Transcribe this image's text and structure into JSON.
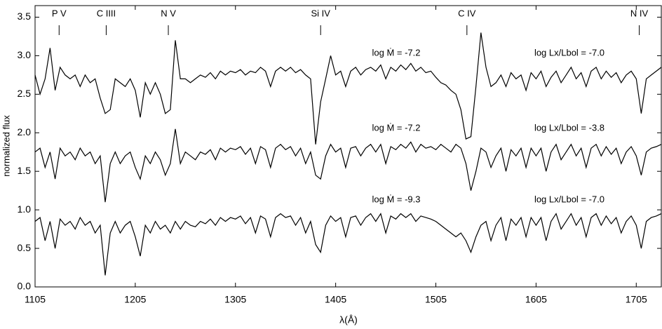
{
  "chart_data": {
    "type": "line",
    "xlabel": "λ(Å)",
    "ylabel": "normalized flux",
    "xlim": [
      1105,
      1730
    ],
    "ylim": [
      0,
      3.65
    ],
    "xticks": [
      1105,
      1205,
      1305,
      1405,
      1505,
      1605,
      1705
    ],
    "yticks": [
      {
        "value": 0,
        "label": "0.0"
      },
      0.5,
      {
        "value": 1,
        "label": "1.0"
      },
      1.5,
      {
        "value": 2,
        "label": "2.0"
      },
      2.5,
      {
        "value": 3,
        "label": "3.0"
      },
      3.5
    ],
    "color": "#000000",
    "line_ids": [
      {
        "label": "P V",
        "x": 1129
      },
      {
        "label": "C IIII",
        "x": 1176
      },
      {
        "label": "N V",
        "x": 1238
      },
      {
        "label": "Si IV",
        "x": 1390
      },
      {
        "label": "C IV",
        "x": 1536
      },
      {
        "label": "N IV",
        "x": 1708
      }
    ],
    "x": [
      1105,
      1110,
      1115,
      1120,
      1125,
      1130,
      1135,
      1140,
      1145,
      1150,
      1155,
      1160,
      1165,
      1170,
      1175,
      1180,
      1185,
      1190,
      1195,
      1200,
      1205,
      1210,
      1215,
      1220,
      1225,
      1230,
      1235,
      1240,
      1245,
      1250,
      1255,
      1260,
      1265,
      1270,
      1275,
      1280,
      1285,
      1290,
      1295,
      1300,
      1305,
      1310,
      1315,
      1320,
      1325,
      1330,
      1335,
      1340,
      1345,
      1350,
      1355,
      1360,
      1365,
      1370,
      1375,
      1380,
      1385,
      1390,
      1395,
      1400,
      1405,
      1410,
      1415,
      1420,
      1425,
      1430,
      1435,
      1440,
      1445,
      1450,
      1455,
      1460,
      1465,
      1470,
      1475,
      1480,
      1485,
      1490,
      1495,
      1500,
      1505,
      1510,
      1515,
      1520,
      1525,
      1530,
      1535,
      1540,
      1545,
      1550,
      1555,
      1560,
      1565,
      1570,
      1575,
      1580,
      1585,
      1590,
      1595,
      1600,
      1605,
      1610,
      1615,
      1620,
      1625,
      1630,
      1635,
      1640,
      1645,
      1650,
      1655,
      1660,
      1665,
      1670,
      1675,
      1680,
      1685,
      1690,
      1695,
      1700,
      1705,
      1710,
      1715,
      1720,
      1725,
      1730
    ],
    "series": [
      {
        "name": "log Ṁ = -7.2",
        "note": "log Lx/Lbol = -7.0",
        "values": [
          2.75,
          2.5,
          2.7,
          3.1,
          2.55,
          2.85,
          2.75,
          2.7,
          2.75,
          2.6,
          2.75,
          2.65,
          2.7,
          2.45,
          2.25,
          2.3,
          2.7,
          2.65,
          2.6,
          2.7,
          2.55,
          2.2,
          2.65,
          2.5,
          2.65,
          2.5,
          2.25,
          2.3,
          3.2,
          2.7,
          2.7,
          2.65,
          2.7,
          2.75,
          2.72,
          2.78,
          2.7,
          2.8,
          2.75,
          2.8,
          2.78,
          2.82,
          2.75,
          2.8,
          2.78,
          2.85,
          2.8,
          2.6,
          2.8,
          2.85,
          2.8,
          2.85,
          2.78,
          2.82,
          2.75,
          2.7,
          1.85,
          2.4,
          2.7,
          3.0,
          2.75,
          2.8,
          2.6,
          2.8,
          2.85,
          2.75,
          2.82,
          2.85,
          2.8,
          2.88,
          2.7,
          2.85,
          2.8,
          2.88,
          2.82,
          2.9,
          2.8,
          2.85,
          2.78,
          2.8,
          2.72,
          2.65,
          2.62,
          2.55,
          2.5,
          2.3,
          1.92,
          1.95,
          2.6,
          3.3,
          2.85,
          2.6,
          2.65,
          2.75,
          2.6,
          2.78,
          2.7,
          2.75,
          2.55,
          2.78,
          2.7,
          2.8,
          2.6,
          2.72,
          2.8,
          2.65,
          2.75,
          2.85,
          2.7,
          2.78,
          2.6,
          2.8,
          2.85,
          2.7,
          2.8,
          2.72,
          2.78,
          2.65,
          2.75,
          2.8,
          2.7,
          2.25,
          2.7,
          2.75,
          2.8,
          2.85
        ]
      },
      {
        "name": "log Ṁ = -7.2",
        "note": "log Lx/Lbol = -3.8",
        "values": [
          1.75,
          1.8,
          1.55,
          1.75,
          1.4,
          1.8,
          1.7,
          1.75,
          1.65,
          1.8,
          1.7,
          1.75,
          1.6,
          1.7,
          1.1,
          1.6,
          1.75,
          1.6,
          1.7,
          1.75,
          1.55,
          1.4,
          1.7,
          1.6,
          1.75,
          1.65,
          1.45,
          1.6,
          2.05,
          1.6,
          1.75,
          1.7,
          1.65,
          1.75,
          1.72,
          1.78,
          1.65,
          1.8,
          1.75,
          1.8,
          1.78,
          1.82,
          1.72,
          1.8,
          1.6,
          1.82,
          1.78,
          1.55,
          1.8,
          1.85,
          1.78,
          1.82,
          1.7,
          1.8,
          1.6,
          1.75,
          1.45,
          1.4,
          1.7,
          1.85,
          1.75,
          1.8,
          1.55,
          1.8,
          1.82,
          1.7,
          1.8,
          1.85,
          1.75,
          1.85,
          1.6,
          1.82,
          1.78,
          1.85,
          1.8,
          1.88,
          1.75,
          1.85,
          1.8,
          1.82,
          1.78,
          1.85,
          1.8,
          1.75,
          1.85,
          1.8,
          1.6,
          1.25,
          1.5,
          1.8,
          1.75,
          1.55,
          1.7,
          1.8,
          1.5,
          1.78,
          1.7,
          1.8,
          1.55,
          1.8,
          1.7,
          1.8,
          1.5,
          1.75,
          1.85,
          1.65,
          1.75,
          1.85,
          1.7,
          1.8,
          1.55,
          1.8,
          1.85,
          1.7,
          1.82,
          1.72,
          1.8,
          1.6,
          1.75,
          1.82,
          1.7,
          1.45,
          1.75,
          1.8,
          1.82,
          1.85
        ]
      },
      {
        "name": "log Ṁ = -9.3",
        "note": "log Lx/Lbol = -7.0",
        "values": [
          0.85,
          0.9,
          0.6,
          0.85,
          0.5,
          0.88,
          0.8,
          0.85,
          0.75,
          0.9,
          0.8,
          0.85,
          0.7,
          0.8,
          0.15,
          0.7,
          0.85,
          0.7,
          0.8,
          0.85,
          0.65,
          0.4,
          0.8,
          0.7,
          0.85,
          0.75,
          0.8,
          0.7,
          0.85,
          0.75,
          0.85,
          0.8,
          0.78,
          0.85,
          0.82,
          0.88,
          0.8,
          0.9,
          0.85,
          0.9,
          0.88,
          0.92,
          0.82,
          0.9,
          0.7,
          0.92,
          0.88,
          0.65,
          0.9,
          0.95,
          0.9,
          0.92,
          0.8,
          0.9,
          0.7,
          0.85,
          0.55,
          0.45,
          0.8,
          0.92,
          0.85,
          0.9,
          0.65,
          0.9,
          0.92,
          0.8,
          0.9,
          0.95,
          0.85,
          0.95,
          0.7,
          0.92,
          0.88,
          0.95,
          0.9,
          0.95,
          0.85,
          0.92,
          0.9,
          0.88,
          0.85,
          0.8,
          0.75,
          0.7,
          0.65,
          0.7,
          0.6,
          0.45,
          0.65,
          0.8,
          0.85,
          0.6,
          0.8,
          0.9,
          0.6,
          0.88,
          0.8,
          0.9,
          0.65,
          0.9,
          0.8,
          0.9,
          0.6,
          0.85,
          0.95,
          0.75,
          0.85,
          0.95,
          0.8,
          0.9,
          0.65,
          0.9,
          0.95,
          0.8,
          0.92,
          0.82,
          0.9,
          0.7,
          0.85,
          0.92,
          0.8,
          0.5,
          0.85,
          0.9,
          0.92,
          0.95
        ]
      }
    ]
  }
}
